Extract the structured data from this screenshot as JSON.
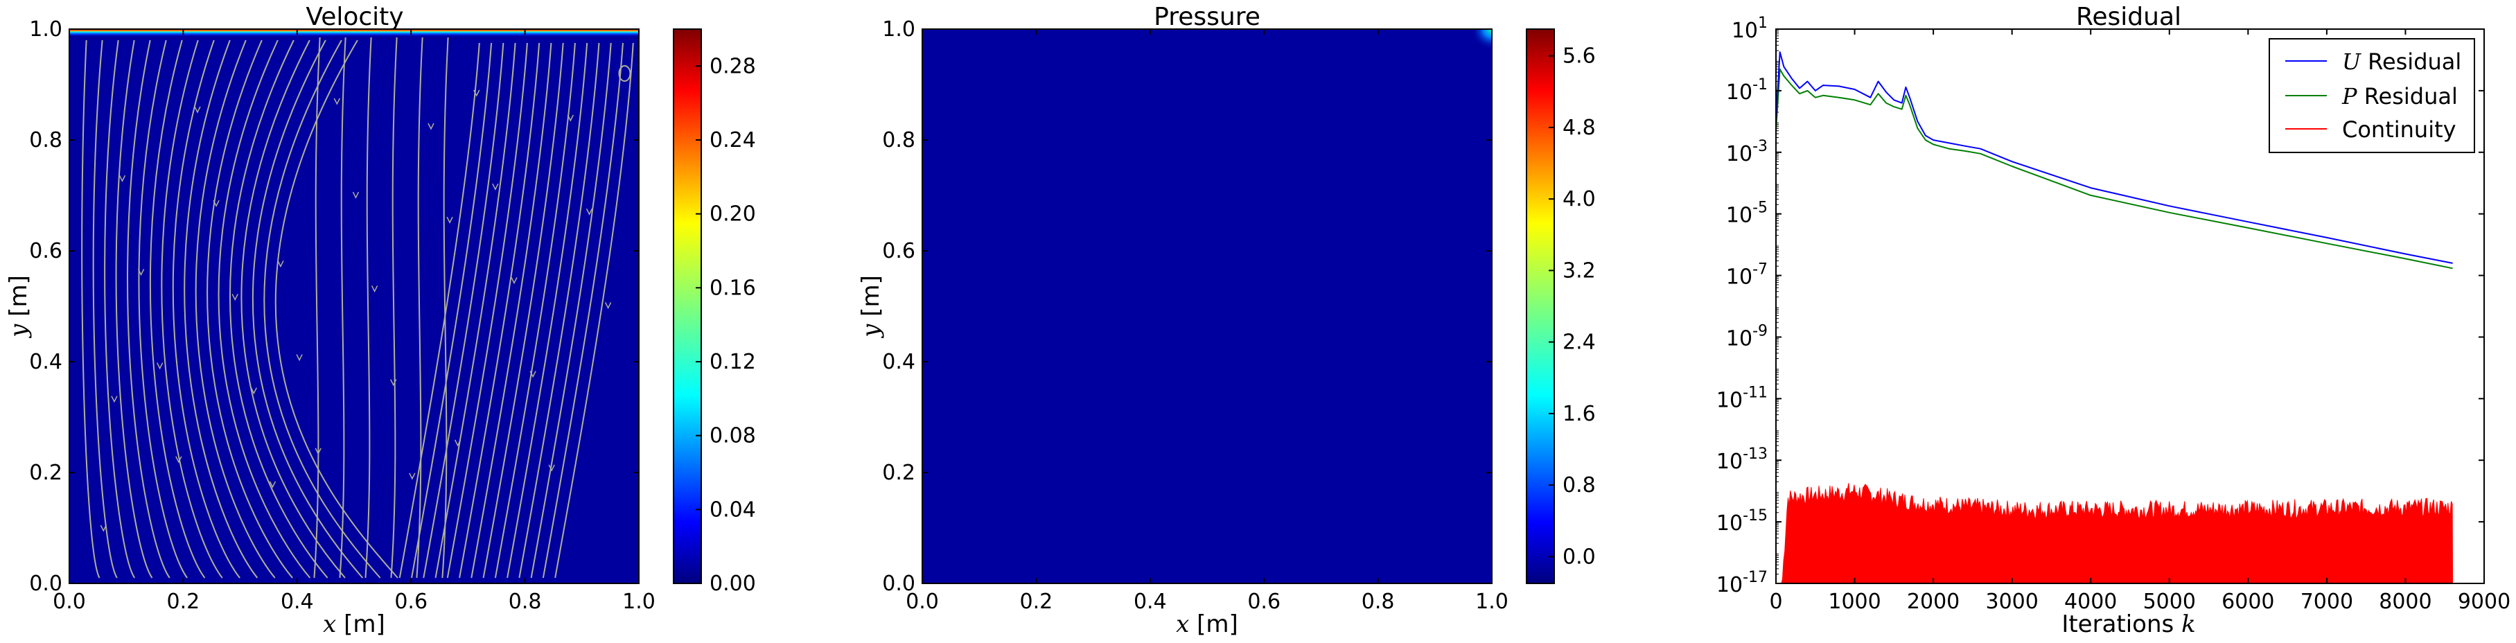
{
  "chart_data": [
    {
      "type": "heatmap",
      "title": "Velocity",
      "xlabel_var": "x",
      "xlabel_unit": " [m]",
      "ylabel_var": "y",
      "ylabel_unit": " [m]",
      "xlim": [
        0,
        1
      ],
      "ylim": [
        0,
        1
      ],
      "xticks": [
        "0.0",
        "0.2",
        "0.4",
        "0.6",
        "0.8",
        "1.0"
      ],
      "yticks": [
        "0.0",
        "0.2",
        "0.4",
        "0.6",
        "0.8",
        "1.0"
      ],
      "colorbar_range": [
        0,
        0.3
      ],
      "colorbar_ticks": [
        "0.00",
        "0.04",
        "0.08",
        "0.12",
        "0.16",
        "0.20",
        "0.24",
        "0.28"
      ],
      "colorbar_tick_values": [
        0,
        0.04,
        0.08,
        0.12,
        0.16,
        0.2,
        0.24,
        0.28
      ],
      "overlay": "streamlines",
      "streamline_color": "#b0b09a",
      "field_description": "lid-driven cavity: maximum velocity in a thin layer at y = 1.0, near zero elsewhere"
    },
    {
      "type": "heatmap",
      "title": "Pressure",
      "xlabel_var": "x",
      "xlabel_unit": " [m]",
      "ylabel_var": "y",
      "ylabel_unit": " [m]",
      "xlim": [
        0,
        1
      ],
      "ylim": [
        0,
        1
      ],
      "xticks": [
        "0.0",
        "0.2",
        "0.4",
        "0.6",
        "0.8",
        "1.0"
      ],
      "yticks": [
        "0.0",
        "0.2",
        "0.4",
        "0.6",
        "0.8",
        "1.0"
      ],
      "colorbar_range": [
        -0.3,
        5.9
      ],
      "colorbar_ticks": [
        "0.0",
        "0.8",
        "1.6",
        "2.4",
        "3.2",
        "4.0",
        "4.8",
        "5.6"
      ],
      "colorbar_tick_values": [
        0,
        0.8,
        1.6,
        2.4,
        3.2,
        4.0,
        4.8,
        5.6
      ],
      "field_description": "uniform near 0 across the domain, a small peak at the top-right corner"
    },
    {
      "type": "line",
      "title": "Residual",
      "xlabel": "Iterations ",
      "xlabel_var": "k",
      "ylabel": "",
      "yscale": "log",
      "xlim": [
        0,
        9000
      ],
      "ylim_exp": [
        -17,
        1
      ],
      "xticks": [
        "0",
        "1000",
        "2000",
        "3000",
        "4000",
        "5000",
        "6000",
        "7000",
        "8000",
        "9000"
      ],
      "ytick_mantissa": "10",
      "ytick_exponents": [
        "1",
        "-1",
        "-3",
        "-5",
        "-7",
        "-9",
        "-11",
        "-13",
        "-15",
        "-17"
      ],
      "legend_position": "upper right",
      "series": [
        {
          "name_var": "U",
          "name": " Residual",
          "color": "#0000ff",
          "points": [
            [
              0,
              0.01
            ],
            [
              50,
              1.8
            ],
            [
              100,
              0.6
            ],
            [
              200,
              0.25
            ],
            [
              300,
              0.12
            ],
            [
              400,
              0.2
            ],
            [
              500,
              0.1
            ],
            [
              600,
              0.15
            ],
            [
              800,
              0.14
            ],
            [
              1000,
              0.11
            ],
            [
              1200,
              0.06
            ],
            [
              1300,
              0.2
            ],
            [
              1400,
              0.09
            ],
            [
              1500,
              0.05
            ],
            [
              1600,
              0.04
            ],
            [
              1650,
              0.13
            ],
            [
              1700,
              0.06
            ],
            [
              1800,
              0.01
            ],
            [
              1900,
              0.0035
            ],
            [
              2000,
              0.0025
            ],
            [
              2200,
              0.002
            ],
            [
              2400,
              0.0016
            ],
            [
              2600,
              0.0013
            ],
            [
              3000,
              0.0005
            ],
            [
              4000,
              7e-05
            ],
            [
              5000,
              1.8e-05
            ],
            [
              6000,
              5.5e-06
            ],
            [
              7000,
              1.7e-06
            ],
            [
              8000,
              5e-07
            ],
            [
              8600,
              2.5e-07
            ]
          ]
        },
        {
          "name_var": "P",
          "name": " Residual",
          "color": "#008000",
          "points": [
            [
              0,
              0.005
            ],
            [
              50,
              0.5
            ],
            [
              100,
              0.3
            ],
            [
              200,
              0.15
            ],
            [
              300,
              0.08
            ],
            [
              400,
              0.1
            ],
            [
              500,
              0.06
            ],
            [
              600,
              0.07
            ],
            [
              800,
              0.06
            ],
            [
              1000,
              0.05
            ],
            [
              1200,
              0.035
            ],
            [
              1300,
              0.08
            ],
            [
              1400,
              0.04
            ],
            [
              1500,
              0.03
            ],
            [
              1600,
              0.025
            ],
            [
              1650,
              0.07
            ],
            [
              1700,
              0.035
            ],
            [
              1800,
              0.006
            ],
            [
              1900,
              0.0025
            ],
            [
              2000,
              0.0018
            ],
            [
              2200,
              0.0013
            ],
            [
              2400,
              0.0011
            ],
            [
              2600,
              0.0009
            ],
            [
              3000,
              0.00035
            ],
            [
              4000,
              4e-05
            ],
            [
              5000,
              1.1e-05
            ],
            [
              6000,
              3.5e-06
            ],
            [
              7000,
              1.1e-06
            ],
            [
              8000,
              3.5e-07
            ],
            [
              8600,
              1.7e-07
            ]
          ]
        },
        {
          "name": "Continuity",
          "color": "#ff0000",
          "style": "filled-noise",
          "points": [
            [
              0,
              1e-17
            ],
            [
              80,
              1e-17
            ],
            [
              150,
              6e-15
            ],
            [
              1000,
              1e-14
            ],
            [
              1800,
              4e-15
            ],
            [
              3000,
              2.5e-15
            ],
            [
              5000,
              2.5e-15
            ],
            [
              8600,
              3e-15
            ]
          ]
        }
      ]
    }
  ]
}
